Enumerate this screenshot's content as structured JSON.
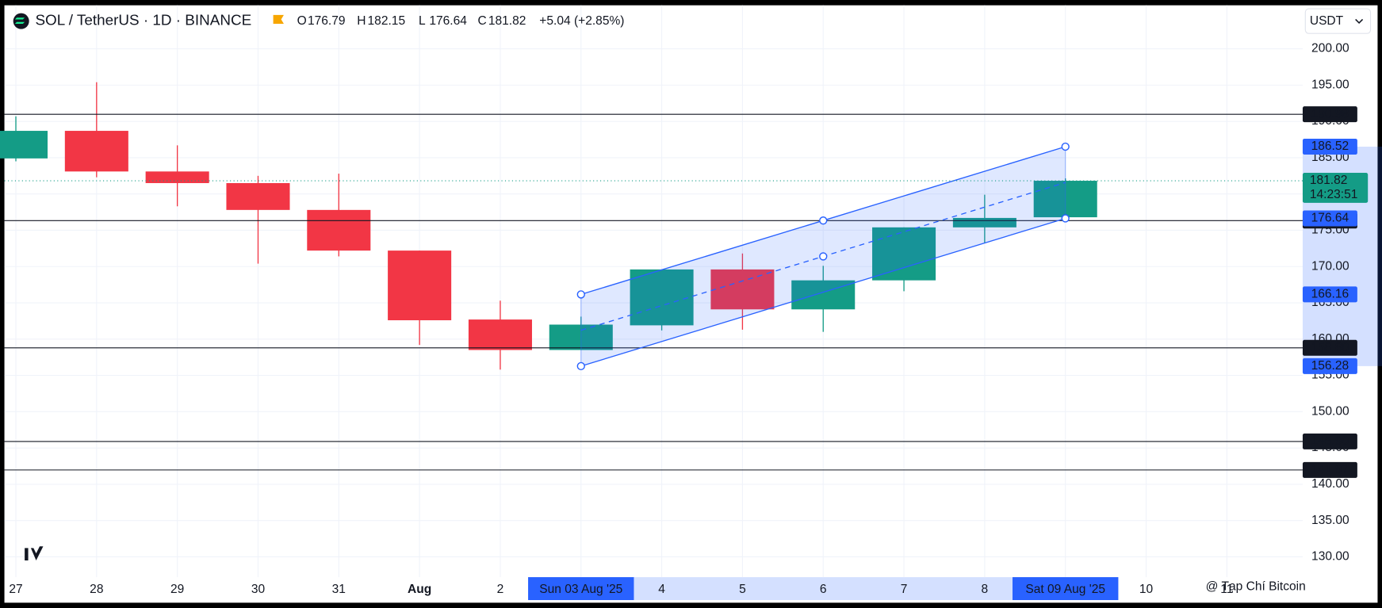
{
  "chart_data": {
    "type": "candlestick",
    "title": "SOL / TetherUS · 1D · BINANCE",
    "currency": "USDT",
    "ohlc_labels": [
      "O",
      "H",
      "L",
      "C"
    ],
    "change_label": "+5.04 (+2.85%)",
    "countdown": "14:23:51",
    "watermark": "@ Tạp Chí Bitcoin",
    "categories": [
      "27",
      "28",
      "29",
      "30",
      "31",
      "Aug",
      "2",
      "Sun 03 Aug '25",
      "4",
      "5",
      "6",
      "7",
      "8",
      "Sat 09 Aug '25",
      "10",
      "11"
    ],
    "open": [
      184.9,
      188.7,
      183.1,
      181.5,
      177.8,
      172.2,
      162.7,
      158.5,
      161.9,
      169.6,
      164.1,
      168.1,
      175.4,
      176.79,
      null,
      null
    ],
    "high": [
      190.7,
      195.4,
      186.7,
      182.5,
      182.8,
      172.2,
      165.3,
      163.1,
      169.6,
      171.8,
      170.1,
      175.4,
      179.9,
      182.15,
      null,
      null
    ],
    "low": [
      184.5,
      182.3,
      178.3,
      170.4,
      171.4,
      159.2,
      155.8,
      158.5,
      161.2,
      161.3,
      161.0,
      166.6,
      173.3,
      176.64,
      null,
      null
    ],
    "close": [
      188.7,
      183.1,
      181.5,
      177.8,
      172.2,
      162.6,
      158.5,
      162.0,
      169.6,
      164.1,
      168.1,
      175.4,
      176.7,
      181.82,
      null,
      null
    ],
    "up_color": "#149c86",
    "down_color": "#f23645",
    "ylim": [
      127.2,
      206
    ],
    "yticks": [
      {
        "value": 130,
        "label": "130.00"
      },
      {
        "value": 135,
        "label": "135.00"
      },
      {
        "value": 140,
        "label": "140.00"
      },
      {
        "value": 145,
        "label": "145.00"
      },
      {
        "value": 150,
        "label": "150.00"
      },
      {
        "value": 155,
        "label": "155.00"
      },
      {
        "value": 160,
        "label": "160.00"
      },
      {
        "value": 165,
        "label": "165.00"
      },
      {
        "value": 170,
        "label": "170.00"
      },
      {
        "value": 175,
        "label": "175.00"
      },
      {
        "value": 180,
        "label": "180.00"
      },
      {
        "value": 185,
        "label": "185.00"
      },
      {
        "value": 190,
        "label": "190.00"
      },
      {
        "value": 195,
        "label": "195.00"
      },
      {
        "value": 200,
        "label": "200.00"
      }
    ],
    "horizontal_lines": [
      {
        "value": 190.98,
        "label": "190.98"
      },
      {
        "value": 176.33,
        "label": "176.33"
      },
      {
        "value": 158.8,
        "label": "158.80"
      },
      {
        "value": 145.9,
        "label": "145.90"
      },
      {
        "value": 141.97,
        "label": "141.97"
      }
    ],
    "channel": {
      "upper": [
        {
          "value": 166.16,
          "label": "166.16"
        },
        {
          "value": 186.52,
          "label": "186.52"
        }
      ],
      "lower": [
        {
          "value": 156.28,
          "label": "156.28"
        },
        {
          "value": 176.64,
          "label": "176.64"
        }
      ],
      "color": "#2962ff"
    },
    "grid": true
  }
}
